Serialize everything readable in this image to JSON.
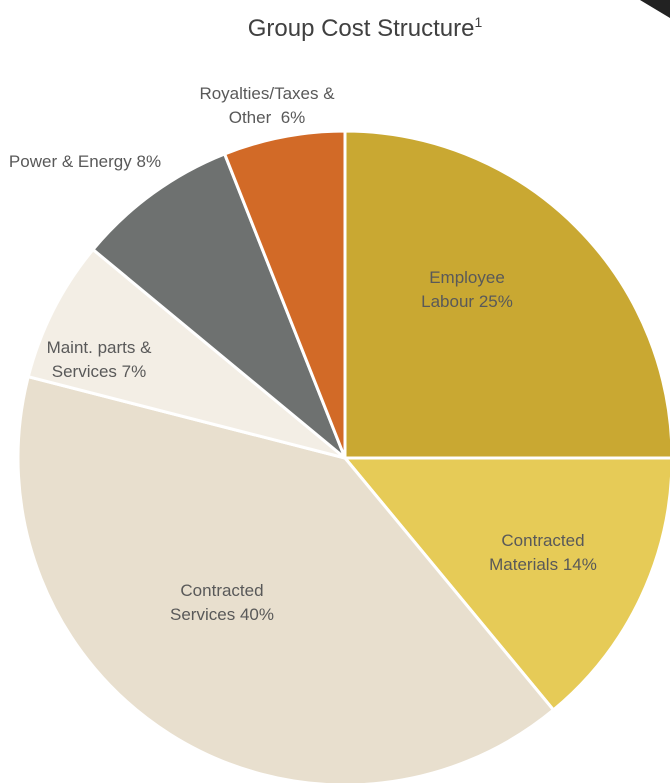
{
  "chart_data": {
    "type": "pie",
    "title": "Group Cost Structure",
    "title_note": "1",
    "categories": [
      "Employee Labour",
      "Contracted Materials",
      "Contracted Services",
      "Maint. parts & Services",
      "Power & Energy",
      "Royalties/Taxes & Other"
    ],
    "values": [
      25,
      14,
      40,
      7,
      8,
      6
    ],
    "value_labels": [
      "25%",
      "14%",
      "40%",
      "7%",
      "8%",
      "6%"
    ],
    "colors": [
      "#C9A832",
      "#E6CB57",
      "#E8DFCE",
      "#F3EEE5",
      "#6E7170",
      "#D26A27"
    ]
  }
}
